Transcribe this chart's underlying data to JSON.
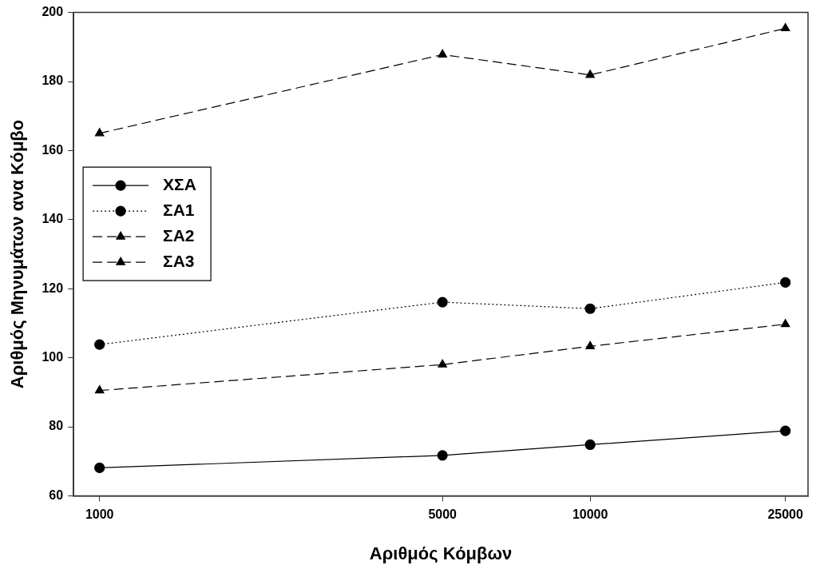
{
  "chart_data": {
    "type": "line",
    "xlabel": "Αριθμός Κόμβων",
    "ylabel": "Αριθμός Μηνυμάτων ανα Κόμβο",
    "x": [
      1000,
      5000,
      10000,
      25000
    ],
    "series": [
      {
        "name": "ΧΣΑ",
        "color": "#000000",
        "values": [
          68.1,
          71.7,
          74.8,
          78.8
        ],
        "marker": "circle",
        "line_style": "solid"
      },
      {
        "name": "ΣΑ1",
        "color": "#000000",
        "values": [
          103.8,
          116.1,
          114.2,
          121.8
        ],
        "marker": "circle",
        "line_style": "dotted"
      },
      {
        "name": "ΣΑ2",
        "color": "#000000",
        "values": [
          90.5,
          98.0,
          103.3,
          109.7
        ],
        "marker": "triangle",
        "line_style": "dashed"
      },
      {
        "name": "ΣΑ3",
        "color": "#000000",
        "values": [
          165.0,
          187.8,
          181.9,
          195.4
        ],
        "marker": "triangle",
        "line_style": "dashed"
      }
    ],
    "log": "x",
    "xlim": [
      885,
      27800
    ],
    "xticks": [
      1000,
      5000,
      10000,
      25000
    ],
    "ylim": [
      60,
      200
    ],
    "yticks": [
      60,
      80,
      100,
      120,
      140,
      160,
      180,
      200
    ],
    "grid": false,
    "legend": "top left"
  }
}
